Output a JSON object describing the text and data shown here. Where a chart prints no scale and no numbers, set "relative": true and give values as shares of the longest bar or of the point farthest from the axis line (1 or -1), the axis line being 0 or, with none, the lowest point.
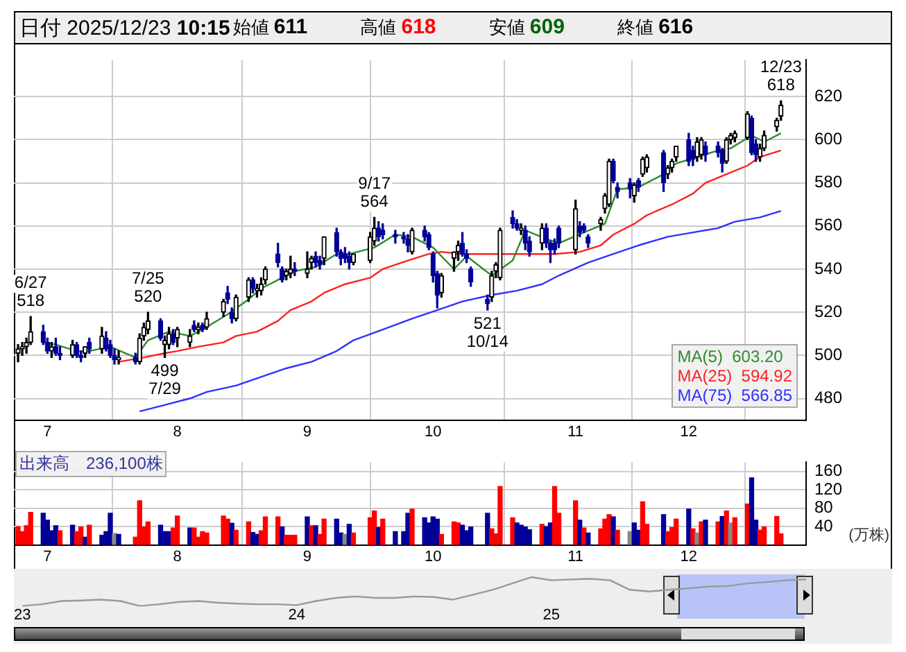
{
  "chart_data": [
    {
      "type": "other",
      "annotations": [
        "日付 2025/12/23 10:15",
        "始値 611",
        "高値 618",
        "安値 609",
        "終値 616"
      ],
      "colors": [
        "#000000",
        "#000000",
        "#ff0000",
        "#006400",
        "#000000"
      ]
    },
    {
      "type": "candlestick",
      "x": [
        "2025-06-24",
        "2025-06-25",
        "2025-06-26",
        "2025-06-27",
        "2025-06-30",
        "2025-07-01",
        "2025-07-02",
        "2025-07-03",
        "2025-07-04",
        "2025-07-07",
        "2025-07-08",
        "2025-07-09",
        "2025-07-10",
        "2025-07-11",
        "2025-07-14",
        "2025-07-15",
        "2025-07-16",
        "2025-07-17",
        "2025-07-18",
        "2025-07-22",
        "2025-07-23",
        "2025-07-24",
        "2025-07-25",
        "2025-07-28",
        "2025-07-29",
        "2025-07-30",
        "2025-07-31",
        "2025-08-01",
        "2025-08-04",
        "2025-08-05",
        "2025-08-06",
        "2025-08-07",
        "2025-08-08",
        "2025-08-12",
        "2025-08-13",
        "2025-08-14",
        "2025-08-15",
        "2025-08-18",
        "2025-08-19",
        "2025-08-20",
        "2025-08-21",
        "2025-08-22",
        "2025-08-25",
        "2025-08-26",
        "2025-08-27",
        "2025-08-28",
        "2025-08-29",
        "2025-09-01",
        "2025-09-02",
        "2025-09-03",
        "2025-09-04",
        "2025-09-05",
        "2025-09-08",
        "2025-09-09",
        "2025-09-10",
        "2025-09-11",
        "2025-09-12",
        "2025-09-16",
        "2025-09-17",
        "2025-09-18",
        "2025-09-19",
        "2025-09-22",
        "2025-09-24",
        "2025-09-25",
        "2025-09-26",
        "2025-09-29",
        "2025-09-30",
        "2025-10-01",
        "2025-10-02",
        "2025-10-03",
        "2025-10-06",
        "2025-10-07",
        "2025-10-08",
        "2025-10-09",
        "2025-10-10",
        "2025-10-14",
        "2025-10-15",
        "2025-10-16",
        "2025-10-17",
        "2025-10-20",
        "2025-10-21",
        "2025-10-22",
        "2025-10-23",
        "2025-10-24",
        "2025-10-27",
        "2025-10-28",
        "2025-10-29",
        "2025-10-30",
        "2025-10-31",
        "2025-11-04",
        "2025-11-05",
        "2025-11-06",
        "2025-11-07",
        "2025-11-10",
        "2025-11-11",
        "2025-11-12",
        "2025-11-13",
        "2025-11-14",
        "2025-11-17",
        "2025-11-18",
        "2025-11-19",
        "2025-11-20",
        "2025-11-21",
        "2025-11-25",
        "2025-11-26",
        "2025-11-27",
        "2025-11-28",
        "2025-12-01",
        "2025-12-02",
        "2025-12-03",
        "2025-12-04",
        "2025-12-05",
        "2025-12-08",
        "2025-12-09",
        "2025-12-10",
        "2025-12-11",
        "2025-12-12",
        "2025-12-15",
        "2025-12-16",
        "2025-12-17",
        "2025-12-18",
        "2025-12-19",
        "2025-12-22",
        "2025-12-23"
      ],
      "ohlc": [
        [
          501,
          505,
          497,
          503
        ],
        [
          503,
          506,
          500,
          504
        ],
        [
          504,
          508,
          501,
          506
        ],
        [
          506,
          518,
          505,
          511
        ],
        [
          511,
          514,
          505,
          506
        ],
        [
          506,
          508,
          501,
          502
        ],
        [
          502,
          506,
          499,
          504
        ],
        [
          504,
          508,
          500,
          501
        ],
        [
          501,
          504,
          498,
          500
        ],
        [
          500,
          507,
          499,
          505
        ],
        [
          505,
          506,
          499,
          500
        ],
        [
          500,
          502,
          497,
          499
        ],
        [
          501,
          504,
          499,
          504
        ],
        [
          506,
          508,
          501,
          503
        ],
        [
          503,
          513,
          501,
          509
        ],
        [
          508,
          511,
          502,
          503
        ],
        [
          505,
          507,
          499,
          500
        ],
        [
          500,
          503,
          496,
          498
        ],
        [
          498,
          502,
          496,
          499
        ],
        [
          499,
          501,
          496,
          497
        ],
        [
          497,
          510,
          496,
          508
        ],
        [
          509,
          515,
          507,
          513
        ],
        [
          512,
          520,
          510,
          516
        ],
        [
          516,
          517,
          507,
          508
        ],
        [
          505,
          509,
          499,
          507
        ],
        [
          505,
          513,
          503,
          510
        ],
        [
          510,
          512,
          505,
          506
        ],
        [
          508,
          513,
          504,
          512
        ],
        [
          506,
          512,
          504,
          509
        ],
        [
          514,
          516,
          511,
          512
        ],
        [
          512,
          515,
          510,
          513
        ],
        [
          514,
          515,
          511,
          512
        ],
        [
          513,
          520,
          512,
          517
        ],
        [
          520,
          526,
          518,
          525
        ],
        [
          529,
          532,
          524,
          526
        ],
        [
          520,
          522,
          515,
          517
        ],
        [
          517,
          528,
          516,
          527
        ],
        [
          527,
          536,
          525,
          535
        ],
        [
          535,
          536,
          529,
          531
        ],
        [
          530,
          533,
          527,
          531
        ],
        [
          530,
          536,
          528,
          533
        ],
        [
          535,
          541,
          533,
          540
        ],
        [
          547,
          552,
          541,
          543
        ],
        [
          540,
          541,
          534,
          535
        ],
        [
          537,
          540,
          535,
          539
        ],
        [
          538,
          546,
          536,
          540
        ],
        [
          540,
          543,
          537,
          539
        ],
        [
          538,
          548,
          536,
          540
        ],
        [
          543,
          546,
          540,
          545
        ],
        [
          546,
          548,
          541,
          543
        ],
        [
          544,
          546,
          540,
          542
        ],
        [
          545,
          555,
          542,
          555
        ],
        [
          557,
          559,
          546,
          548
        ],
        [
          548,
          549,
          542,
          545
        ],
        [
          547,
          550,
          543,
          545
        ],
        [
          546,
          548,
          540,
          543
        ],
        [
          543,
          547,
          542,
          547
        ],
        [
          544,
          557,
          543,
          555
        ],
        [
          553,
          564,
          551,
          559
        ],
        [
          559,
          562,
          553,
          555
        ],
        [
          558,
          561,
          554,
          556
        ],
        [
          556,
          558,
          552,
          555
        ],
        [
          555,
          557,
          552,
          554
        ],
        [
          554,
          556,
          548,
          551
        ],
        [
          548,
          559,
          547,
          558
        ],
        [
          558,
          560,
          553,
          555
        ],
        [
          556,
          557,
          549,
          550
        ],
        [
          547,
          548,
          534,
          537
        ],
        [
          538,
          539,
          522,
          528
        ],
        [
          529,
          538,
          527,
          537
        ],
        [
          545,
          548,
          539,
          548
        ],
        [
          548,
          553,
          544,
          551
        ],
        [
          552,
          557,
          546,
          547
        ],
        [
          547,
          549,
          543,
          545
        ],
        [
          540,
          541,
          532,
          534
        ],
        [
          526,
          528,
          521,
          524
        ],
        [
          527,
          539,
          525,
          537
        ],
        [
          539,
          543,
          536,
          542
        ],
        [
          536,
          559,
          535,
          558
        ],
        [
          564,
          567,
          559,
          561
        ],
        [
          561,
          563,
          558,
          559
        ],
        [
          558,
          561,
          556,
          559
        ],
        [
          558,
          560,
          549,
          552
        ],
        [
          553,
          555,
          546,
          548
        ],
        [
          552,
          561,
          549,
          559
        ],
        [
          559,
          561,
          550,
          552
        ],
        [
          552,
          553,
          543,
          549
        ],
        [
          552,
          554,
          547,
          549
        ],
        [
          559,
          560,
          550,
          552
        ],
        [
          549,
          572,
          547,
          568
        ],
        [
          560,
          562,
          555,
          557
        ],
        [
          560,
          561,
          557,
          558
        ],
        [
          555,
          556,
          550,
          552
        ],
        [
          561,
          564,
          558,
          563
        ],
        [
          568,
          575,
          566,
          574
        ],
        [
          570,
          591,
          569,
          590
        ],
        [
          590,
          591,
          580,
          581
        ],
        [
          578,
          580,
          573,
          576
        ],
        [
          580,
          582,
          573,
          577
        ],
        [
          574,
          580,
          571,
          579
        ],
        [
          581,
          582,
          576,
          578
        ],
        [
          584,
          592,
          583,
          591
        ],
        [
          587,
          593,
          585,
          592
        ],
        [
          594,
          595,
          576,
          580
        ],
        [
          584,
          588,
          582,
          587
        ],
        [
          587,
          591,
          585,
          590
        ],
        [
          592,
          597,
          590,
          597
        ],
        [
          600,
          603,
          588,
          590
        ],
        [
          595,
          597,
          588,
          591
        ],
        [
          592,
          601,
          590,
          599
        ],
        [
          593,
          601,
          591,
          600
        ],
        [
          597,
          599,
          590,
          593
        ],
        [
          597,
          599,
          592,
          594
        ],
        [
          595,
          596,
          585,
          589
        ],
        [
          590,
          601,
          589,
          600
        ],
        [
          600,
          603,
          598,
          602
        ],
        [
          601,
          604,
          599,
          603
        ],
        [
          601,
          613,
          600,
          612
        ],
        [
          610,
          611,
          593,
          594
        ],
        [
          598,
          600,
          590,
          593
        ],
        [
          592,
          598,
          590,
          596
        ],
        [
          596,
          604,
          595,
          602
        ],
        [
          606,
          610,
          604,
          609
        ],
        [
          611,
          618,
          609,
          616
        ]
      ],
      "series": [
        {
          "name": "MA(5)  603.20",
          "type": "line",
          "color": "#2e8b2e",
          "x": [
            "2025-06-30",
            "2025-07-03",
            "2025-07-08",
            "2025-07-11",
            "2025-07-16",
            "2025-07-22",
            "2025-07-25",
            "2025-07-30",
            "2025-08-04",
            "2025-08-07",
            "2025-08-13",
            "2025-08-18",
            "2025-08-21",
            "2025-08-26",
            "2025-08-29",
            "2025-09-03",
            "2025-09-08",
            "2025-09-11",
            "2025-09-17",
            "2025-09-22",
            "2025-09-26",
            "2025-10-01",
            "2025-10-06",
            "2025-10-09",
            "2025-10-15",
            "2025-10-20",
            "2025-10-23",
            "2025-10-28",
            "2025-10-31",
            "2025-11-06",
            "2025-11-11",
            "2025-11-14",
            "2025-11-19",
            "2025-11-25",
            "2025-11-28",
            "2025-12-08",
            "2025-12-11",
            "2025-12-16",
            "2025-12-19",
            "2025-12-23"
          ],
          "values": [
            506,
            505,
            502,
            502,
            504,
            499,
            507,
            511,
            509,
            512,
            519,
            526,
            531,
            536,
            539,
            541,
            547,
            547,
            550,
            556,
            555,
            550,
            540,
            546,
            537,
            544,
            558,
            554,
            552,
            557,
            561,
            577,
            578,
            584,
            589,
            595,
            596,
            602,
            599,
            603
          ]
        },
        {
          "name": "MA(25)  594.92",
          "type": "line",
          "color": "#ff2020",
          "x": [
            "2025-07-18",
            "2025-07-24",
            "2025-07-29",
            "2025-08-01",
            "2025-08-06",
            "2025-08-12",
            "2025-08-15",
            "2025-08-20",
            "2025-08-25",
            "2025-08-28",
            "2025-09-02",
            "2025-09-05",
            "2025-09-10",
            "2025-09-16",
            "2025-09-19",
            "2025-09-25",
            "2025-09-30",
            "2025-10-03",
            "2025-10-08",
            "2025-10-14",
            "2025-10-17",
            "2025-10-22",
            "2025-10-27",
            "2025-10-30",
            "2025-11-05",
            "2025-11-10",
            "2025-11-13",
            "2025-11-18",
            "2025-11-21",
            "2025-11-27",
            "2025-12-02",
            "2025-12-05",
            "2025-12-10",
            "2025-12-15",
            "2025-12-18",
            "2025-12-23"
          ],
          "values": [
            497,
            499,
            501,
            502,
            504,
            506,
            509,
            511,
            516,
            521,
            525,
            529,
            533,
            536,
            540,
            544,
            547,
            548,
            547,
            547,
            547,
            547,
            547,
            547,
            548,
            551,
            556,
            561,
            565,
            570,
            575,
            580,
            584,
            588,
            592,
            595
          ]
        },
        {
          "name": "MA(75)  566.85",
          "type": "line",
          "color": "#3030ff",
          "x": [
            "2025-07-23",
            "2025-07-29",
            "2025-08-04",
            "2025-08-08",
            "2025-08-15",
            "2025-08-21",
            "2025-08-27",
            "2025-09-02",
            "2025-09-08",
            "2025-09-12",
            "2025-09-19",
            "2025-09-26",
            "2025-10-02",
            "2025-10-08",
            "2025-10-15",
            "2025-10-21",
            "2025-10-27",
            "2025-10-31",
            "2025-11-07",
            "2025-11-13",
            "2025-11-19",
            "2025-11-26",
            "2025-12-02",
            "2025-12-08",
            "2025-12-12",
            "2025-12-18",
            "2025-12-23"
          ],
          "values": [
            474,
            477,
            480,
            483,
            486,
            490,
            494,
            497,
            502,
            507,
            512,
            517,
            521,
            525,
            528,
            530,
            533,
            537,
            543,
            547,
            551,
            555,
            557,
            559,
            562,
            564,
            567
          ]
        }
      ],
      "xticks": [
        {
          "value": "2025-07-01",
          "label": "7"
        },
        {
          "value": "2025-08-01",
          "label": "8"
        },
        {
          "value": "2025-09-01",
          "label": "9"
        },
        {
          "value": "2025-10-01",
          "label": "10"
        },
        {
          "value": "2025-11-04",
          "label": "11"
        },
        {
          "value": "2025-12-01",
          "label": "12"
        }
      ],
      "xlim": [
        "2025-06-23",
        "2025-12-29"
      ],
      "ylim": [
        470,
        637
      ],
      "yticks": [
        480,
        500,
        520,
        540,
        560,
        580,
        600,
        620
      ],
      "grid": true,
      "legend": "bottom right",
      "annotations": [
        {
          "text": "6/27\n518",
          "x": "2025-06-27",
          "y": 518
        },
        {
          "text": "7/25\n520",
          "x": "2025-07-25",
          "y": 520
        },
        {
          "text": "499\n7/29",
          "x": "2025-07-29",
          "y": 499
        },
        {
          "text": "9/17\n564",
          "x": "2025-09-17",
          "y": 564
        },
        {
          "text": "521\n10/14",
          "x": "2025-10-14",
          "y": 521
        },
        {
          "text": "12/23\n618",
          "x": "2025-12-23",
          "y": 618
        }
      ]
    },
    {
      "type": "bar",
      "title": "出来高　236,100株",
      "ylabel": "(万株)",
      "x": [
        "2025-06-24",
        "2025-06-25",
        "2025-06-26",
        "2025-06-27",
        "2025-06-30",
        "2025-07-01",
        "2025-07-02",
        "2025-07-03",
        "2025-07-04",
        "2025-07-07",
        "2025-07-08",
        "2025-07-09",
        "2025-07-10",
        "2025-07-11",
        "2025-07-14",
        "2025-07-15",
        "2025-07-16",
        "2025-07-17",
        "2025-07-18",
        "2025-07-22",
        "2025-07-23",
        "2025-07-24",
        "2025-07-25",
        "2025-07-28",
        "2025-07-29",
        "2025-07-30",
        "2025-07-31",
        "2025-08-01",
        "2025-08-04",
        "2025-08-05",
        "2025-08-06",
        "2025-08-07",
        "2025-08-08",
        "2025-08-12",
        "2025-08-13",
        "2025-08-14",
        "2025-08-15",
        "2025-08-18",
        "2025-08-19",
        "2025-08-20",
        "2025-08-21",
        "2025-08-22",
        "2025-08-25",
        "2025-08-26",
        "2025-08-27",
        "2025-08-28",
        "2025-08-29",
        "2025-09-01",
        "2025-09-02",
        "2025-09-03",
        "2025-09-04",
        "2025-09-05",
        "2025-09-08",
        "2025-09-09",
        "2025-09-10",
        "2025-09-11",
        "2025-09-12",
        "2025-09-16",
        "2025-09-17",
        "2025-09-18",
        "2025-09-19",
        "2025-09-22",
        "2025-09-24",
        "2025-09-25",
        "2025-09-26",
        "2025-09-29",
        "2025-09-30",
        "2025-10-01",
        "2025-10-02",
        "2025-10-03",
        "2025-10-06",
        "2025-10-07",
        "2025-10-08",
        "2025-10-09",
        "2025-10-10",
        "2025-10-14",
        "2025-10-15",
        "2025-10-16",
        "2025-10-17",
        "2025-10-20",
        "2025-10-21",
        "2025-10-22",
        "2025-10-23",
        "2025-10-24",
        "2025-10-27",
        "2025-10-28",
        "2025-10-29",
        "2025-10-30",
        "2025-10-31",
        "2025-11-04",
        "2025-11-05",
        "2025-11-06",
        "2025-11-07",
        "2025-11-10",
        "2025-11-11",
        "2025-11-12",
        "2025-11-13",
        "2025-11-14",
        "2025-11-17",
        "2025-11-18",
        "2025-11-19",
        "2025-11-20",
        "2025-11-21",
        "2025-11-25",
        "2025-11-26",
        "2025-11-27",
        "2025-11-28",
        "2025-12-01",
        "2025-12-02",
        "2025-12-03",
        "2025-12-04",
        "2025-12-05",
        "2025-12-08",
        "2025-12-09",
        "2025-12-10",
        "2025-12-11",
        "2025-12-12",
        "2025-12-15",
        "2025-12-16",
        "2025-12-17",
        "2025-12-18",
        "2025-12-19",
        "2025-12-22",
        "2025-12-23"
      ],
      "values": [
        40,
        29,
        42,
        71,
        69,
        54,
        31,
        42,
        31,
        43,
        29,
        39,
        17,
        43,
        21,
        29,
        69,
        25,
        23,
        17,
        96,
        39,
        50,
        43,
        29,
        29,
        37,
        63,
        37,
        37,
        17,
        29,
        26,
        63,
        56,
        47,
        32,
        50,
        27,
        23,
        31,
        61,
        61,
        39,
        21,
        21,
        21,
        61,
        42,
        42,
        23,
        56,
        56,
        26,
        23,
        45,
        26,
        59,
        74,
        38,
        56,
        29,
        29,
        69,
        78,
        59,
        48,
        61,
        56,
        23,
        50,
        48,
        43,
        31,
        39,
        69,
        35,
        24,
        127,
        59,
        48,
        43,
        39,
        33,
        45,
        40,
        48,
        127,
        69,
        96,
        54,
        37,
        26,
        35,
        56,
        66,
        61,
        32,
        29,
        48,
        32,
        94,
        45,
        66,
        29,
        38,
        56,
        78,
        35,
        26,
        50,
        54,
        50,
        62,
        74,
        48,
        59,
        89,
        146,
        54,
        32,
        39,
        62,
        24
      ],
      "colors": [
        "#ff0000",
        "#ff0000",
        "#ff0000",
        "#ff0000",
        "#000099",
        "#000099",
        "#000099",
        "#000099",
        "#ff0000",
        "#000099",
        "#ff0000",
        "#ff0000",
        "#000099",
        "#ff0000",
        "#000099",
        "#000099",
        "#000099",
        "#888888",
        "#000099",
        "#ff0000",
        "#ff0000",
        "#ff0000",
        "#ff0000",
        "#000099",
        "#000099",
        "#000099",
        "#ff0000",
        "#ff0000",
        "#000099",
        "#ff0000",
        "#ff0000",
        "#ff0000",
        "#ff0000",
        "#ff0000",
        "#ff0000",
        "#000099",
        "#ff0000",
        "#ff0000",
        "#000099",
        "#000099",
        "#ff0000",
        "#ff0000",
        "#ff0000",
        "#000099",
        "#ff0000",
        "#ff0000",
        "#ff0000",
        "#000099",
        "#ff0000",
        "#000099",
        "#ff0000",
        "#ff0000",
        "#000099",
        "#000099",
        "#888888",
        "#000099",
        "#ff0000",
        "#ff0000",
        "#ff0000",
        "#000099",
        "#ff0000",
        "#000099",
        "#000099",
        "#000099",
        "#ff0000",
        "#000099",
        "#000099",
        "#000099",
        "#000099",
        "#ff0000",
        "#ff0000",
        "#ff0000",
        "#000099",
        "#000099",
        "#000099",
        "#000099",
        "#ff0000",
        "#ff0000",
        "#ff0000",
        "#ff0000",
        "#000099",
        "#000099",
        "#000099",
        "#000099",
        "#ff0000",
        "#000099",
        "#000099",
        "#ff0000",
        "#ff0000",
        "#ff0000",
        "#000099",
        "#ff0000",
        "#000099",
        "#ff0000",
        "#ff0000",
        "#ff0000",
        "#000099",
        "#ff0000",
        "#888888",
        "#000099",
        "#000099",
        "#ff0000",
        "#ff0000",
        "#000099",
        "#ff0000",
        "#ff0000",
        "#ff0000",
        "#000099",
        "#ff0000",
        "#888888",
        "#ff0000",
        "#000099",
        "#ff0000",
        "#000099",
        "#ff0000",
        "#888888",
        "#ff0000",
        "#ff0000",
        "#000099",
        "#000099",
        "#ff0000",
        "#ff0000",
        "#ff0000",
        "#ff0000"
      ],
      "xticks": [
        {
          "value": "2025-07-01",
          "label": "7"
        },
        {
          "value": "2025-08-01",
          "label": "8"
        },
        {
          "value": "2025-09-01",
          "label": "9"
        },
        {
          "value": "2025-10-01",
          "label": "10"
        },
        {
          "value": "2025-11-04",
          "label": "11"
        },
        {
          "value": "2025-12-01",
          "label": "12"
        }
      ],
      "xlim": [
        "2025-06-23",
        "2025-12-29"
      ],
      "ylim": [
        0,
        180
      ],
      "yticks": [
        40,
        80,
        120,
        160
      ],
      "grid": true
    },
    {
      "type": "line",
      "relative": true,
      "color": "#999999",
      "categories": [
        "23",
        null,
        null,
        null,
        null,
        null,
        null,
        null,
        null,
        null,
        null,
        null,
        null,
        null,
        "24",
        null,
        null,
        null,
        null,
        null,
        null,
        null,
        null,
        null,
        null,
        null,
        null,
        "25",
        null,
        null,
        null,
        null,
        null,
        null,
        null,
        null,
        null,
        null,
        null,
        null,
        null
      ],
      "values": [
        0,
        0.06,
        0.17,
        0.19,
        0.22,
        0.17,
        0,
        0.06,
        0.14,
        0.17,
        0.11,
        0.08,
        0.06,
        0.06,
        0.03,
        0.17,
        0.28,
        0.33,
        0.28,
        0.28,
        0.33,
        0.31,
        0.22,
        0.39,
        0.56,
        0.78,
        1,
        0.89,
        0.92,
        0.94,
        0.89,
        0.56,
        0.5,
        0.56,
        0.61,
        0.67,
        0.69,
        0.78,
        0.83,
        0.89,
        0.92
      ]
    }
  ]
}
